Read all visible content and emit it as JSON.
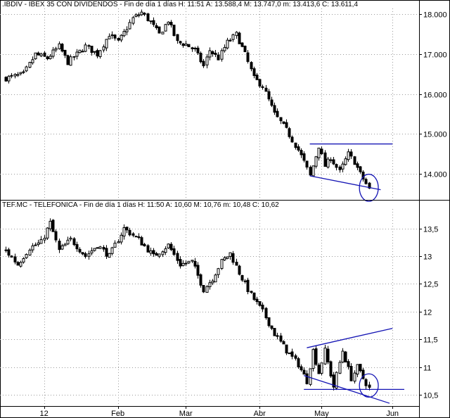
{
  "chart_data": [
    {
      "type": "candlestick",
      "header": ".IBDIV - IBEX 35 CON DIVIDENDOS - Fin de día 1 días  H: 11:51  A: 13.588,4  M: 13.747,0  m: 13.413,6  C: 13.611,4",
      "ylim": [
        13400,
        18150
      ],
      "yticks": [
        14000,
        15000,
        16000,
        17000,
        18000
      ],
      "ytick_labels": [
        "14.000",
        "15.000",
        "16.000",
        "17.000",
        "18.000"
      ],
      "grid": true,
      "anchors": [
        {
          "x": 0,
          "y": 16400
        },
        {
          "x": 6,
          "y": 16500
        },
        {
          "x": 10,
          "y": 17000
        },
        {
          "x": 14,
          "y": 16900
        },
        {
          "x": 18,
          "y": 17200
        },
        {
          "x": 21,
          "y": 16800
        },
        {
          "x": 27,
          "y": 17200
        },
        {
          "x": 31,
          "y": 17000
        },
        {
          "x": 35,
          "y": 17500
        },
        {
          "x": 38,
          "y": 17300
        },
        {
          "x": 43,
          "y": 17900
        },
        {
          "x": 46,
          "y": 18050
        },
        {
          "x": 49,
          "y": 17800
        },
        {
          "x": 52,
          "y": 17500
        },
        {
          "x": 55,
          "y": 17850
        },
        {
          "x": 58,
          "y": 17300
        },
        {
          "x": 61,
          "y": 17250
        },
        {
          "x": 64,
          "y": 17100
        },
        {
          "x": 67,
          "y": 16700
        },
        {
          "x": 69,
          "y": 17100
        },
        {
          "x": 72,
          "y": 16900
        },
        {
          "x": 75,
          "y": 17300
        },
        {
          "x": 78,
          "y": 17500
        },
        {
          "x": 81,
          "y": 17000
        },
        {
          "x": 84,
          "y": 16400
        },
        {
          "x": 87,
          "y": 16200
        },
        {
          "x": 91,
          "y": 15500
        },
        {
          "x": 95,
          "y": 15100
        },
        {
          "x": 99,
          "y": 14600
        },
        {
          "x": 101,
          "y": 14300
        },
        {
          "x": 103,
          "y": 13950
        },
        {
          "x": 106,
          "y": 14700
        },
        {
          "x": 108,
          "y": 14200
        },
        {
          "x": 110,
          "y": 14400
        },
        {
          "x": 113,
          "y": 14050
        },
        {
          "x": 116,
          "y": 14500
        },
        {
          "x": 118,
          "y": 14300
        },
        {
          "x": 120,
          "y": 14000
        },
        {
          "x": 122,
          "y": 13750
        },
        {
          "x": 123,
          "y": 13611
        }
      ],
      "trendlines": [
        {
          "x1": 103,
          "y1": 14750,
          "x2": 131,
          "y2": 14750
        },
        {
          "x1": 103,
          "y1": 13950,
          "x2": 127,
          "y2": 13600
        }
      ],
      "circle": {
        "x": 123,
        "y": 13650,
        "rx": 3.2,
        "ry": 340
      }
    },
    {
      "type": "candlestick",
      "header": "TEF.MC - TELEFONICA - Fin de día 1 días  H: 11:50  A: 10,60  M: 10,76  m: 10,48  C: 10,62",
      "ylim": [
        10.3,
        13.85
      ],
      "yticks": [
        10.5,
        11,
        11.5,
        12,
        12.5,
        13,
        13.5
      ],
      "ytick_labels": [
        "10,5",
        "11",
        "11,5",
        "12",
        "12,5",
        "13",
        "13,5"
      ],
      "grid": true,
      "anchors": [
        {
          "x": 0,
          "y": 13.1
        },
        {
          "x": 4,
          "y": 12.85
        },
        {
          "x": 8,
          "y": 13.15
        },
        {
          "x": 12,
          "y": 13.25
        },
        {
          "x": 15,
          "y": 13.6
        },
        {
          "x": 18,
          "y": 13.1
        },
        {
          "x": 22,
          "y": 13.3
        },
        {
          "x": 27,
          "y": 13.0
        },
        {
          "x": 31,
          "y": 13.2
        },
        {
          "x": 35,
          "y": 13.0
        },
        {
          "x": 40,
          "y": 13.5
        },
        {
          "x": 45,
          "y": 13.3
        },
        {
          "x": 50,
          "y": 13.0
        },
        {
          "x": 55,
          "y": 13.2
        },
        {
          "x": 59,
          "y": 12.85
        },
        {
          "x": 63,
          "y": 12.9
        },
        {
          "x": 67,
          "y": 12.4
        },
        {
          "x": 70,
          "y": 12.6
        },
        {
          "x": 73,
          "y": 12.9
        },
        {
          "x": 76,
          "y": 13.05
        },
        {
          "x": 79,
          "y": 12.7
        },
        {
          "x": 83,
          "y": 12.3
        },
        {
          "x": 87,
          "y": 12.0
        },
        {
          "x": 91,
          "y": 11.6
        },
        {
          "x": 95,
          "y": 11.3
        },
        {
          "x": 99,
          "y": 11.05
        },
        {
          "x": 102,
          "y": 10.75
        },
        {
          "x": 104,
          "y": 11.3
        },
        {
          "x": 106,
          "y": 10.9
        },
        {
          "x": 108,
          "y": 11.3
        },
        {
          "x": 111,
          "y": 10.65
        },
        {
          "x": 114,
          "y": 11.3
        },
        {
          "x": 117,
          "y": 10.8
        },
        {
          "x": 119,
          "y": 11.0
        },
        {
          "x": 121,
          "y": 10.8
        },
        {
          "x": 123,
          "y": 10.62
        }
      ],
      "trendlines": [
        {
          "x1": 102,
          "y1": 11.35,
          "x2": 131,
          "y2": 11.7
        },
        {
          "x1": 101,
          "y1": 10.6,
          "x2": 135,
          "y2": 10.6
        },
        {
          "x1": 101,
          "y1": 10.85,
          "x2": 130,
          "y2": 10.35
        }
      ],
      "circle": {
        "x": 123,
        "y": 10.67,
        "rx": 3.2,
        "ry": 0.21
      }
    }
  ],
  "x_axis": {
    "labels": [
      "12",
      "Feb",
      "Mar",
      "Abr",
      "May",
      "Jun"
    ],
    "positions": [
      13,
      38,
      61,
      86,
      107,
      131
    ]
  },
  "colors": {
    "candle": "#000000",
    "trendline": "#1414b4",
    "grid": "#9a9a9a",
    "background": "#ffffff"
  }
}
